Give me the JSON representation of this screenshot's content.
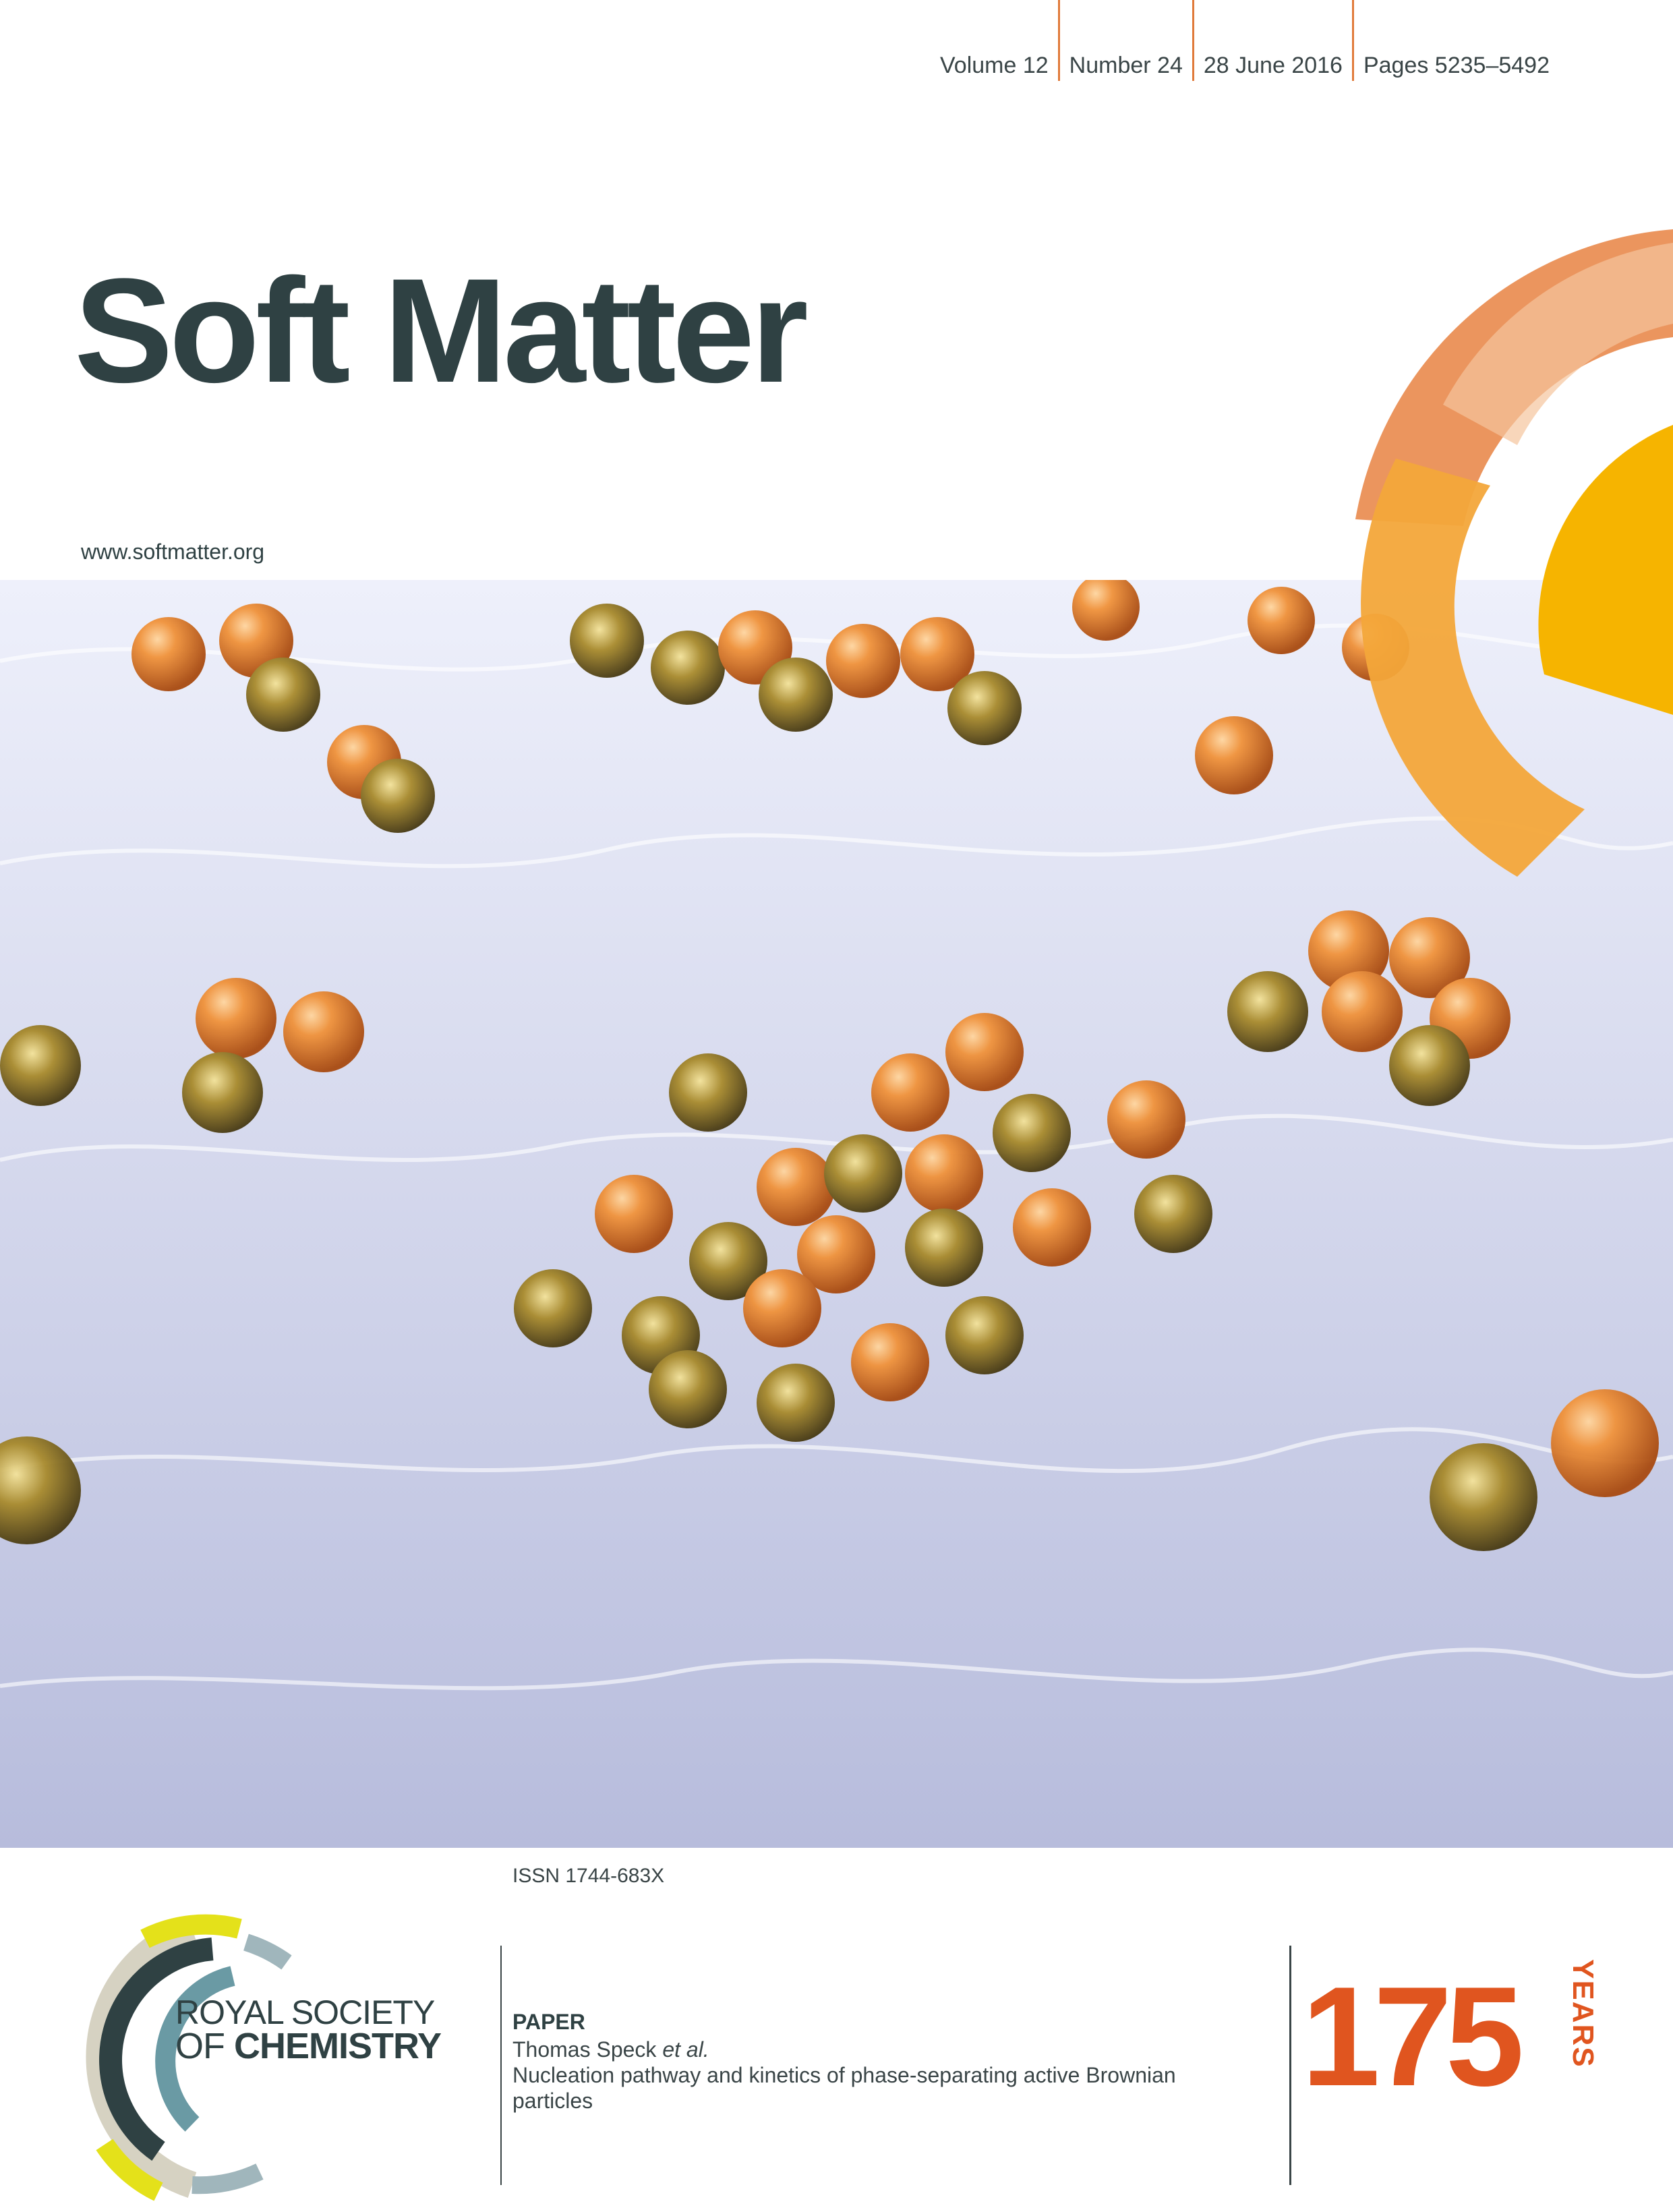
{
  "header": {
    "volume": "Volume 12",
    "number": "Number 24",
    "date": "28 June 2016",
    "pages": "Pages 5235–5492"
  },
  "journal": {
    "title": "Soft Matter",
    "url": "www.softmatter.org"
  },
  "issn": "ISSN 1744-683X",
  "publisher": {
    "line1": "ROYAL SOCIETY",
    "line2_prefix": "OF ",
    "line2_strong": "CHEMISTRY"
  },
  "article": {
    "type": "PAPER",
    "author": "Thomas Speck",
    "author_suffix": "et al.",
    "title": "Nucleation pathway and kinetics of phase-separating active Brownian particles"
  },
  "anniversary": {
    "number": "175",
    "word": "YEARS"
  },
  "colors": {
    "brand_orange": "#e0551f",
    "title_ink": "#2f4143",
    "accent_rule": "#e07a3a"
  }
}
